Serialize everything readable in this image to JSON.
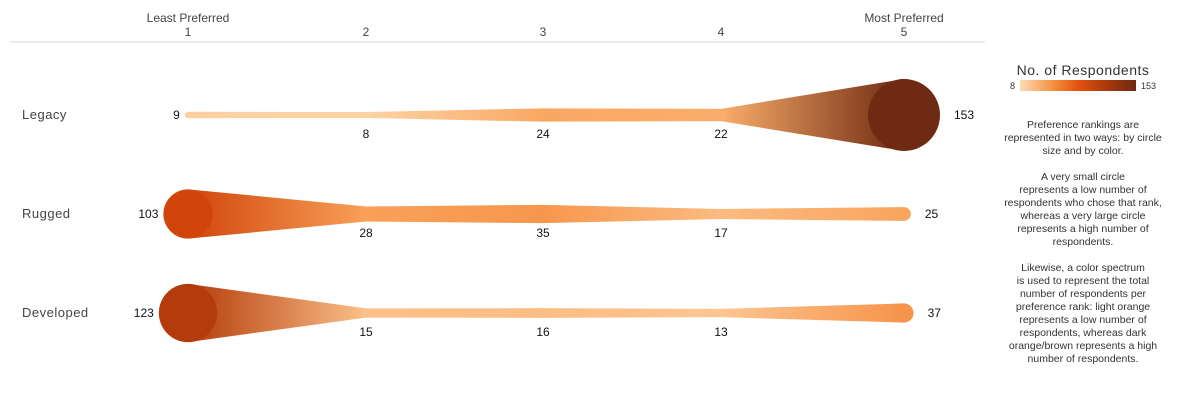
{
  "chart_data": {
    "type": "line",
    "xaxis": {
      "ranks": [
        "1",
        "2",
        "3",
        "4",
        "5"
      ],
      "low_label": "Least Preferred",
      "high_label": "Most Preferred"
    },
    "series": [
      {
        "name": "Legacy",
        "values": [
          9,
          8,
          24,
          22,
          153
        ]
      },
      {
        "name": "Rugged",
        "values": [
          103,
          28,
          35,
          17,
          25
        ]
      },
      {
        "name": "Developed",
        "values": [
          123,
          15,
          16,
          13,
          37
        ]
      }
    ],
    "encoding": {
      "min": 8,
      "max": 153,
      "color_low": "#fcd5a8",
      "color_high": "#6e2a12"
    }
  },
  "legend": {
    "title": "No. of Respondents",
    "min_label": "8",
    "max_label": "153",
    "note1": "Preference rankings are\nrepresented in two ways: by circle\nsize and by color.",
    "note2": "A very small circle\nrepresents a low number of\nrespondents who chose that rank,\nwhereas a very large circle\nrepresents a high number of\nrespondents.",
    "note3": "Likewise, a color spectrum\nis used to represent the total\nnumber of respondents per\npreference rank: light orange\nrepresents a low number of\nrespondents, whereas dark\norange/brown represents a high\nnumber of respondents."
  }
}
